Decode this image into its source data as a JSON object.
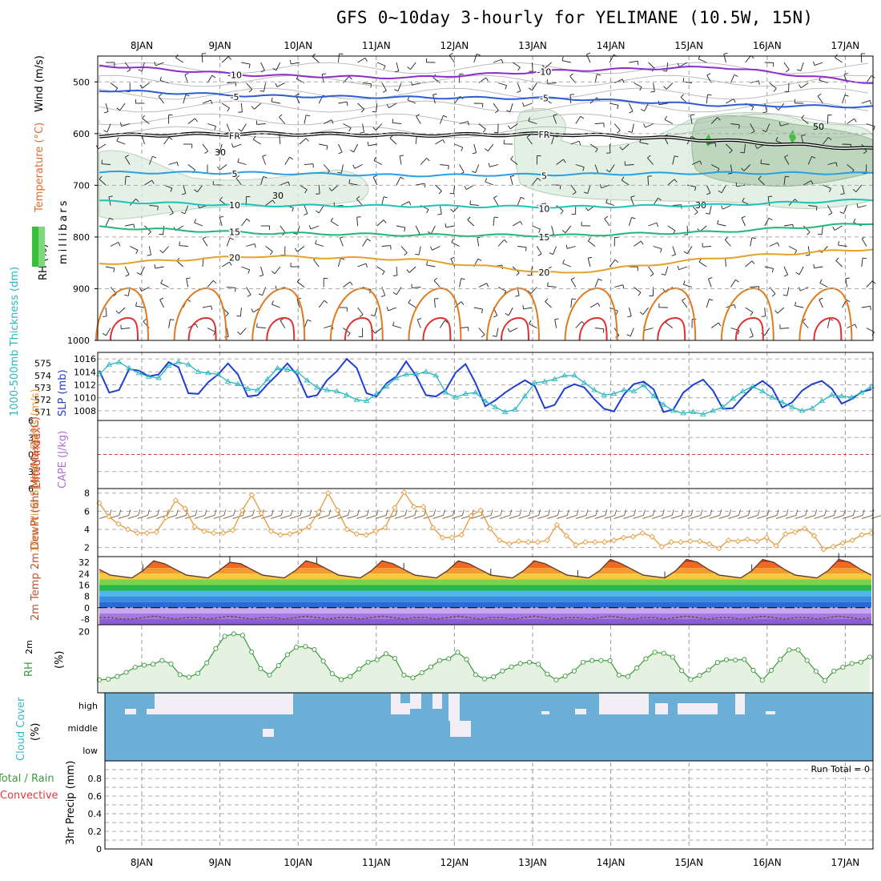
{
  "title": "GFS 0~10day 3-hourly for YELIMANE (10.5W, 15N)",
  "dates": [
    "8JAN",
    "9JAN",
    "10JAN",
    "11JAN",
    "12JAN",
    "13JAN",
    "14JAN",
    "15JAN",
    "16JAN",
    "17JAN"
  ],
  "run_total": "Run Total = 0",
  "colors": {
    "grid": "#999999",
    "cloud": "#6baed6",
    "cloud_gap": "#f2eef6",
    "rh_fill": "#e6f2e1",
    "rh_line": "#3a9a3a",
    "slp": "#1f3fd1",
    "thick": "#2ab7c1",
    "wind10": "#e69a3a",
    "li": "#e03a3a"
  },
  "chart_data": [
    {
      "id": "upper_air",
      "type": "contour",
      "ylabel": "millibars",
      "axis_labels": [
        "Temperature (°C)",
        "Wind (m/s)",
        "RH (%)"
      ],
      "yticks": [
        500,
        600,
        700,
        800,
        900,
        1000
      ],
      "ylim": [
        450,
        1000
      ],
      "temperature_contours": [
        {
          "value": -10,
          "label": "-10",
          "color": "#8a2fc9",
          "levels_mb": [
            468,
            487,
            492,
            478,
            471,
            502
          ]
        },
        {
          "value": -5,
          "label": "-5",
          "color": "#2f5bd6",
          "levels_mb": [
            516,
            527,
            530,
            532,
            545,
            548
          ]
        },
        {
          "value": 0,
          "label": "FR",
          "color": "#000000",
          "levels_mb": [
            604,
            600,
            603,
            601,
            613,
            630
          ]
        },
        {
          "value": 5,
          "label": "5",
          "color": "#2aa0e0",
          "levels_mb": [
            675,
            676,
            681,
            679,
            676,
            677
          ]
        },
        {
          "value": 10,
          "label": "10",
          "color": "#1fc2b8",
          "levels_mb": [
            731,
            739,
            740,
            742,
            738,
            728
          ]
        },
        {
          "value": 15,
          "label": "15",
          "color": "#1fb87a",
          "levels_mb": [
            781,
            792,
            796,
            797,
            790,
            773
          ]
        },
        {
          "value": 20,
          "label": "20",
          "color": "#e3a22a",
          "levels_mb": [
            852,
            837,
            843,
            871,
            840,
            823
          ]
        }
      ],
      "rh_labels": [
        "30",
        "30",
        "30",
        "50"
      ]
    },
    {
      "id": "thickness_slp",
      "type": "line",
      "ylabel_left": "1000-500mb Thickness (dm)",
      "ylabel_right": "SLP (mb)",
      "yticks_left": [
        571,
        572,
        573,
        574,
        575
      ],
      "yticks_right": [
        1008,
        1010,
        1012,
        1014,
        1016
      ],
      "series": [
        {
          "name": "SLP (mb)",
          "color": "#1f3fd1",
          "values": [
            1014.2,
            1010.8,
            1011.2,
            1014.4,
            1014.2,
            1013.3,
            1013.6,
            1015.5,
            1014.7,
            1010.7,
            1010.6,
            1012.4,
            1013.6,
            1015.3,
            1013.6,
            1010.2,
            1010.4,
            1012.1,
            1013.6,
            1015.3,
            1013.5,
            1010.1,
            1010.4,
            1012.7,
            1014.1,
            1016.0,
            1014.6,
            1010.7,
            1010.2,
            1012.2,
            1013.3,
            1015.6,
            1013.4,
            1010.4,
            1010.2,
            1011.2,
            1013.9,
            1015.2,
            1012.3,
            1008.7,
            1009.6,
            1010.8,
            1011.8,
            1012.7,
            1011.8,
            1008.4,
            1008.9,
            1011.4,
            1012.1,
            1011.6,
            1009.8,
            1008.3,
            1007.9,
            1010.5,
            1012.1,
            1012.5,
            1011.3,
            1007.8,
            1008.2,
            1010.8,
            1012.0,
            1012.8,
            1011.1,
            1008.3,
            1008.4,
            1010.1,
            1011.6,
            1012.6,
            1011.4,
            1008.5,
            1009.3,
            1011.1,
            1012.1,
            1012.6,
            1011.4,
            1009.1,
            1009.8,
            1010.9,
            1011.3
          ]
        },
        {
          "name": "1000-500mb Thickness (dm)",
          "color": "#2ab7c1",
          "values": [
            574.1,
            574.9,
            575.1,
            574.6,
            574.2,
            573.9,
            573.8,
            574.8,
            575.1,
            574.9,
            574.3,
            574.2,
            574.1,
            573.5,
            573.3,
            572.9,
            572.8,
            573.7,
            574.6,
            574.5,
            574.3,
            573.6,
            573.0,
            572.8,
            572.7,
            572.4,
            572.0,
            571.9,
            572.5,
            573.1,
            573.8,
            574.1,
            574.1,
            574.3,
            574.0,
            572.6,
            572.2,
            572.5,
            572.6,
            571.9,
            571.4,
            571.0,
            571.2,
            572.3,
            573.4,
            573.5,
            573.7,
            574.0,
            574.0,
            573.4,
            572.8,
            572.4,
            572.5,
            572.8,
            572.7,
            573.2,
            572.3,
            571.6,
            571.1,
            570.9,
            571.0,
            570.8,
            571.1,
            571.4,
            572.1,
            572.7,
            573.1,
            572.7,
            572.2,
            571.8,
            571.4,
            571.1,
            571.3,
            571.9,
            572.4,
            572.3,
            572.2,
            572.6,
            573.1
          ]
        }
      ]
    },
    {
      "id": "li_cape",
      "type": "line",
      "ylabel_left": "Lifted Index",
      "ylabel_right": "CAPE (J/kg)",
      "yticks": [
        6,
        3,
        0,
        -3,
        -6
      ],
      "tick_labels": [
        "-6",
        "-3",
        "0",
        "3",
        "6"
      ],
      "ylim": [
        -6,
        6
      ],
      "series": [
        {
          "name": "Lifted Index",
          "color": "#e03a3a",
          "values": [
            0,
            0
          ]
        }
      ]
    },
    {
      "id": "wind10m",
      "type": "line",
      "ylabel": "10m Wind Speed & Barbs (m/s)",
      "yticks": [
        2,
        4,
        6,
        8
      ],
      "ylim": [
        1,
        8.5
      ],
      "series": [
        {
          "name": "10m Wind Speed",
          "color": "#e69a3a",
          "values": [
            6.9,
            5.4,
            4.6,
            4.0,
            3.6,
            3.6,
            3.7,
            5.3,
            7.2,
            6.3,
            4.3,
            3.8,
            3.6,
            3.6,
            3.9,
            6.1,
            7.8,
            5.8,
            3.8,
            3.4,
            3.5,
            3.8,
            4.3,
            5.9,
            8.0,
            6.1,
            4.0,
            3.5,
            3.4,
            3.8,
            4.2,
            6.4,
            8.1,
            6.5,
            6.5,
            4.2,
            3.1,
            3.1,
            3.4,
            5.5,
            6.1,
            4.1,
            2.8,
            2.4,
            2.7,
            2.6,
            2.6,
            2.8,
            4.5,
            3.3,
            2.3,
            2.6,
            2.6,
            2.6,
            2.8,
            3.1,
            3.2,
            3.6,
            3.2,
            2.1,
            2.6,
            2.6,
            2.7,
            2.7,
            2.4,
            1.9,
            2.8,
            2.7,
            2.9,
            2.7,
            3.1,
            2.2,
            3.5,
            3.7,
            4.1,
            3.3,
            1.8,
            2.1,
            2.5,
            2.8,
            3.4,
            3.6
          ]
        }
      ]
    },
    {
      "id": "temp2m",
      "type": "area",
      "ylabel": "2m Temp 2m DewPt (6hr Min/Max) (°C)",
      "yticks": [
        32,
        24,
        16,
        8,
        0,
        -8
      ],
      "ylim": [
        -12,
        36
      ],
      "series": [
        {
          "name": "2m Temp",
          "values": [
            27,
            23,
            22,
            21,
            26,
            33,
            31,
            27,
            23,
            22,
            21,
            26,
            32,
            31,
            27,
            23,
            22,
            21,
            26,
            33,
            31,
            27,
            23,
            22,
            21,
            26,
            33,
            31,
            27,
            23,
            22,
            21,
            26,
            33,
            31,
            27,
            23,
            22,
            21,
            26,
            33,
            31,
            27,
            23,
            22,
            21,
            26,
            34,
            31,
            27,
            23,
            22,
            21,
            26,
            34,
            32,
            27,
            23,
            22,
            21,
            26,
            34,
            32,
            27,
            23,
            22,
            21,
            26,
            34,
            32,
            27,
            23
          ]
        },
        {
          "name": "2m DewPt",
          "values": [
            -7,
            -7,
            -8,
            -8,
            -7,
            -6,
            -7,
            -8,
            -7,
            -7,
            -8,
            -7,
            -6,
            -7,
            -8,
            -7,
            -7,
            -8,
            -7,
            -6,
            -7,
            -8,
            -7,
            -7,
            -8,
            -7,
            -6,
            -7,
            -8,
            -7,
            -7,
            -8,
            -7,
            -6,
            -7,
            -8,
            -7,
            -7,
            -8,
            -7,
            -6,
            -7,
            -8,
            -7,
            -7,
            -8,
            -7,
            -6,
            -7,
            -8,
            -7,
            -7,
            -8,
            -7,
            -6,
            -7,
            -8,
            -7,
            -7,
            -8,
            -7,
            -6,
            -7,
            -8,
            -7,
            -7,
            -8,
            -7,
            -6,
            -7,
            -8,
            -7
          ]
        }
      ]
    },
    {
      "id": "rh2m",
      "type": "area",
      "ylabel": "2m RH (%)",
      "yticks": [
        20
      ],
      "ylim": [
        2,
        22
      ],
      "series": [
        {
          "name": "2m RH",
          "color": "#3a9a3a",
          "values": [
            5.8,
            6.0,
            6.8,
            8.0,
            9.5,
            10.1,
            10.4,
            11.5,
            10.5,
            7.3,
            6.6,
            7.7,
            10.8,
            15.0,
            18.6,
            19.3,
            18.9,
            14.0,
            9.1,
            7.2,
            10.0,
            13.2,
            15.4,
            15.6,
            14.7,
            11.3,
            7.6,
            5.9,
            6.8,
            9.0,
            11.0,
            11.7,
            13.5,
            12.1,
            7.2,
            6.4,
            7.9,
            9.6,
            11.5,
            12.0,
            13.9,
            11.8,
            7.3,
            6.1,
            6.7,
            8.4,
            9.6,
            10.6,
            11.0,
            10.4,
            7.5,
            5.8,
            6.9,
            8.4,
            11.0,
            11.5,
            11.5,
            11.4,
            7.2,
            6.8,
            9.3,
            12.0,
            13.9,
            13.6,
            12.5,
            8.5,
            5.9,
            7.1,
            8.7,
            10.9,
            11.7,
            11.6,
            11.8,
            8.6,
            5.7,
            8.6,
            11.8,
            14.6,
            14.6,
            11.5,
            8.3,
            5.6,
            8.4,
            9.5,
            10.6,
            11.0,
            12.5
          ]
        }
      ]
    },
    {
      "id": "cloud",
      "type": "heatmap",
      "ylabel": "Cloud Cover (%)",
      "levels": [
        "high",
        "middle",
        "low"
      ]
    },
    {
      "id": "precip",
      "type": "bar",
      "ylabel": "3hr Precip (mm)",
      "left_labels": [
        "Total / Rain",
        "Convective"
      ],
      "yticks": [
        0,
        0.2,
        0.4,
        0.6,
        0.8
      ],
      "ylim": [
        0,
        1.0
      ],
      "values": []
    }
  ]
}
